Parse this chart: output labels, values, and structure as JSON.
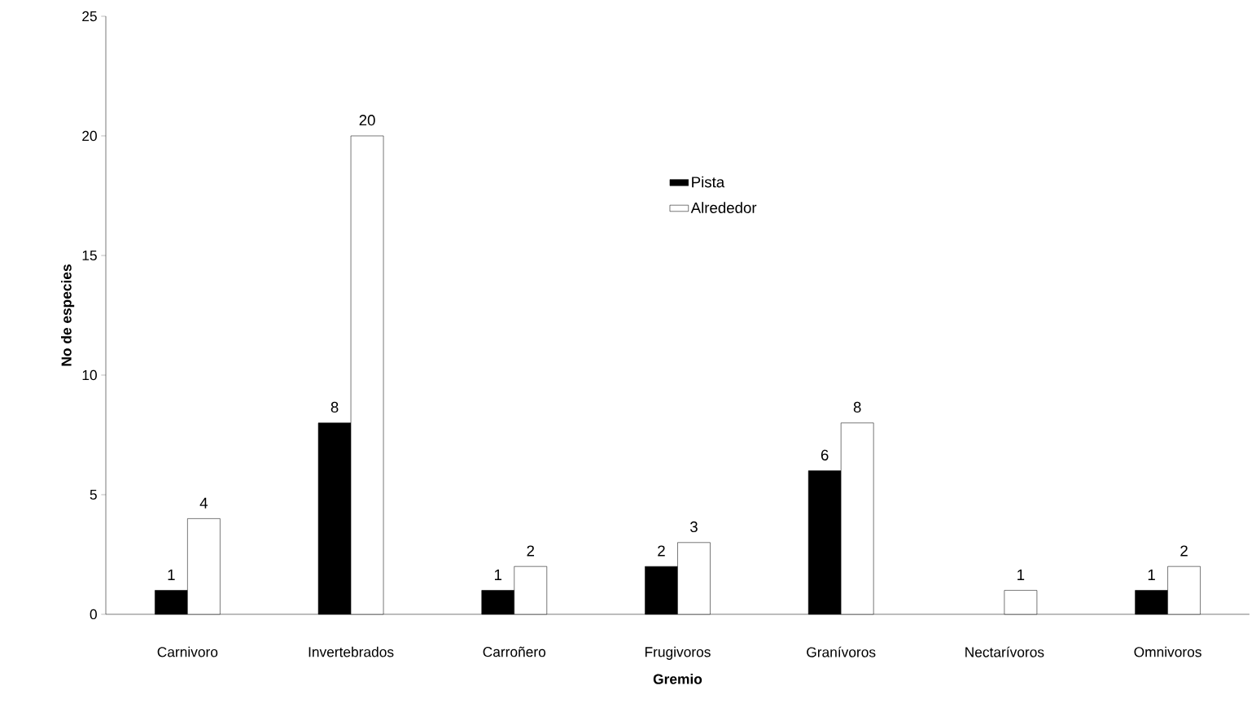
{
  "chart_data": {
    "type": "bar",
    "xlabel": "Gremio",
    "ylabel": "No de especies",
    "categories": [
      "Carnivoro",
      "Invertebrados",
      "Carroñero",
      "Frugivoros",
      "Granívoros",
      "Nectarívoros",
      "Omnivoros"
    ],
    "series": [
      {
        "name": "Pista",
        "color": "#000000",
        "values": [
          1,
          8,
          1,
          2,
          6,
          null,
          1
        ]
      },
      {
        "name": "Alrededor",
        "color": "#ffffff",
        "values": [
          4,
          20,
          2,
          3,
          8,
          1,
          2
        ]
      }
    ],
    "ylim": [
      0,
      25
    ],
    "yticks": [
      0,
      5,
      10,
      15,
      20,
      25
    ],
    "data_labels": true,
    "legend": "top",
    "grid": false
  }
}
